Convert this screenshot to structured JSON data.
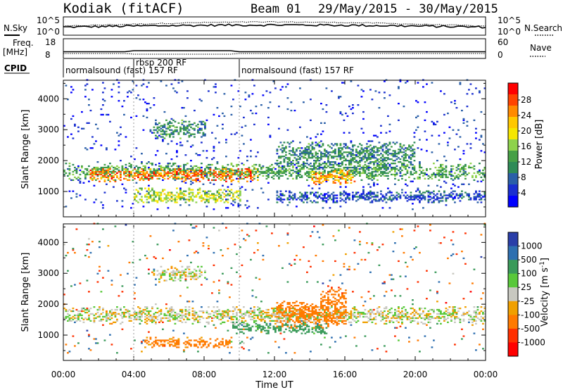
{
  "header": {
    "station": "Kodiak (fitACF)",
    "beam": "Beam 01",
    "date_range": "29/May/2015 - 30/May/2015"
  },
  "panels": {
    "nsky_label": "N.Sky",
    "nsky_ticks": [
      "10^5",
      "10^0"
    ],
    "nsearch_label": "N.Search",
    "nsearch_ticks": [
      "10^5",
      "10^0"
    ],
    "freq_label": "Freq.",
    "freq_unit": "[MHz]",
    "freq_ticks": [
      "18",
      "8"
    ],
    "nave_label": "Nave",
    "nave_ticks": [
      "60",
      "0"
    ],
    "cpid_label": "CPID",
    "cpid_segments": [
      {
        "label": "normalsound (fast) 157 RF",
        "start_h": 0,
        "end_h": 4.0,
        "row": "bottom"
      },
      {
        "label": "rbsp 200 RF",
        "start_h": 4.0,
        "end_h": 10.0,
        "row": "top"
      },
      {
        "label": "normalsound (fast) 157 RF",
        "start_h": 10.0,
        "end_h": 24,
        "row": "bottom"
      }
    ]
  },
  "power_scale": {
    "title": "Power [dB]",
    "ticks": [
      "28",
      "24",
      "20",
      "16",
      "12",
      "8",
      "4"
    ],
    "colors": [
      "#ff0000",
      "#ff4400",
      "#ff8a00",
      "#ffc800",
      "#f5e600",
      "#8ed24c",
      "#46a046",
      "#2e8b57",
      "#2a5fa8",
      "#1a2fd0",
      "#0000ff"
    ]
  },
  "velocity_scale": {
    "title": "Velocity [m s",
    "title_sup": "-1",
    "title_end": "]",
    "ticks": [
      "1000",
      "500",
      "100",
      "25",
      "-25",
      "-100",
      "-500",
      "-1000"
    ],
    "colors": [
      "#2a3ea8",
      "#2e6fb0",
      "#3a9a5a",
      "#59c83a",
      "#c8c8c0",
      "#f0a000",
      "#ff7a00",
      "#ff3000",
      "#ff0000"
    ]
  },
  "axes": {
    "ylabel": "Slant Range [km]",
    "xlabel": "Time UT",
    "y_ticks": [
      "4000",
      "3000",
      "2000",
      "1000"
    ],
    "x_ticks": [
      "00:00",
      "04:00",
      "08:00",
      "12:00",
      "16:00",
      "20:00",
      "00:00"
    ]
  },
  "chart_data": [
    {
      "type": "heatmap",
      "title": "Power [dB]",
      "xlabel": "Time UT",
      "ylabel": "Slant Range [km]",
      "xlim_hours": [
        0,
        24
      ],
      "ylim": [
        180,
        4600
      ],
      "color_range": [
        0,
        30
      ],
      "regions": [
        {
          "t": [
            0,
            24
          ],
          "r": [
            1350,
            1900
          ],
          "dB": 12
        },
        {
          "t": [
            1.5,
            11
          ],
          "r": [
            1300,
            1750
          ],
          "dB": 24
        },
        {
          "t": [
            14,
            16.5
          ],
          "r": [
            1200,
            1700
          ],
          "dB": 22
        },
        {
          "t": [
            4,
            10
          ],
          "r": [
            600,
            1100
          ],
          "dB": 16
        },
        {
          "t": [
            5,
            8
          ],
          "r": [
            2700,
            3300
          ],
          "dB": 10
        },
        {
          "t": [
            12,
            20
          ],
          "r": [
            1700,
            2600
          ],
          "dB": 10
        },
        {
          "t": [
            12,
            24
          ],
          "r": [
            600,
            1000
          ],
          "dB": 6
        }
      ]
    },
    {
      "type": "heatmap",
      "title": "Velocity [m s-1]",
      "xlabel": "Time UT",
      "ylabel": "Slant Range [km]",
      "xlim_hours": [
        0,
        24
      ],
      "ylim": [
        180,
        4600
      ],
      "color_range": [
        -1000,
        1000
      ],
      "regions": [
        {
          "t": [
            0,
            24
          ],
          "r": [
            1350,
            1900
          ],
          "v": 0
        },
        {
          "t": [
            4.5,
            9.5
          ],
          "r": [
            550,
            900
          ],
          "v": -150
        },
        {
          "t": [
            9.5,
            15
          ],
          "r": [
            1000,
            1400
          ],
          "v": 150
        },
        {
          "t": [
            12,
            16
          ],
          "r": [
            1200,
            2100
          ],
          "v": -300
        },
        {
          "t": [
            14.5,
            16
          ],
          "r": [
            1800,
            2500
          ],
          "v": -400
        },
        {
          "t": [
            5,
            8
          ],
          "r": [
            2700,
            3200
          ],
          "v": 0
        }
      ]
    }
  ]
}
